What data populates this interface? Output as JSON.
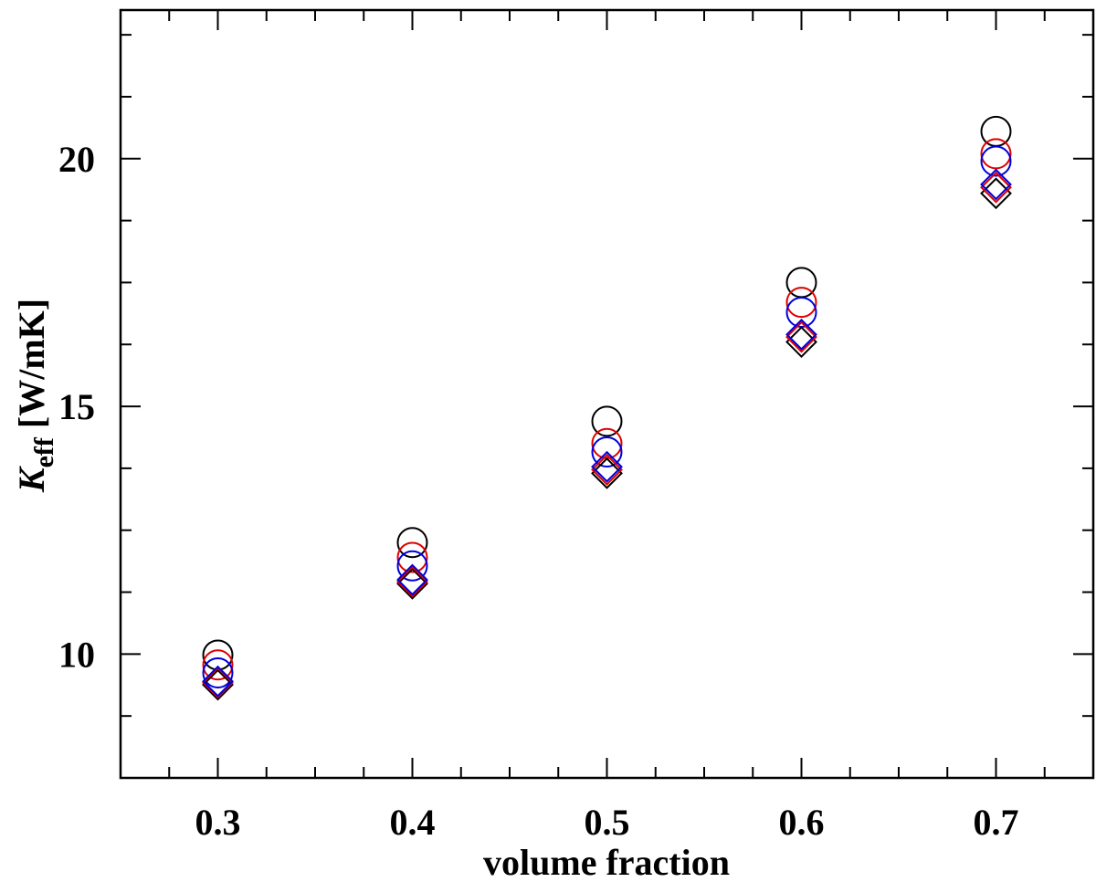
{
  "chart_data": {
    "type": "scatter",
    "title": "",
    "xlabel": "volume fraction",
    "ylabel": {
      "symbol": "K",
      "subscript": "eff",
      "unit": " [W/mK]"
    },
    "xlim": [
      0.25,
      0.75
    ],
    "ylim": [
      7.5,
      23.0
    ],
    "x_ticks": [
      0.3,
      0.4,
      0.5,
      0.6,
      0.7
    ],
    "x_tick_labels": [
      "0.3",
      "0.4",
      "0.5",
      "0.6",
      "0.7"
    ],
    "x_minor_step": 0.025,
    "y_ticks": [
      10,
      15,
      20
    ],
    "y_tick_labels": [
      "10",
      "15",
      "20"
    ],
    "y_minor_step": 1.25,
    "grid": false,
    "legend": "none",
    "x": [
      0.3,
      0.4,
      0.5,
      0.6,
      0.7
    ],
    "series": [
      {
        "marker": "circle",
        "color": "#000000",
        "values": [
          9.98,
          12.25,
          14.7,
          17.5,
          20.55
        ]
      },
      {
        "marker": "circle",
        "color": "#e00000",
        "values": [
          9.78,
          11.95,
          14.25,
          17.1,
          20.1
        ]
      },
      {
        "marker": "circle",
        "color": "#0000dd",
        "values": [
          9.62,
          11.78,
          14.08,
          16.9,
          19.95
        ]
      },
      {
        "marker": "diamond",
        "color": "#000000",
        "values": [
          9.38,
          11.42,
          13.65,
          16.3,
          19.3
        ]
      },
      {
        "marker": "diamond",
        "color": "#e00000",
        "values": [
          9.42,
          11.46,
          13.72,
          16.4,
          19.42
        ]
      },
      {
        "marker": "diamond",
        "color": "#0000dd",
        "values": [
          9.45,
          11.5,
          13.78,
          16.45,
          19.48
        ]
      }
    ]
  }
}
